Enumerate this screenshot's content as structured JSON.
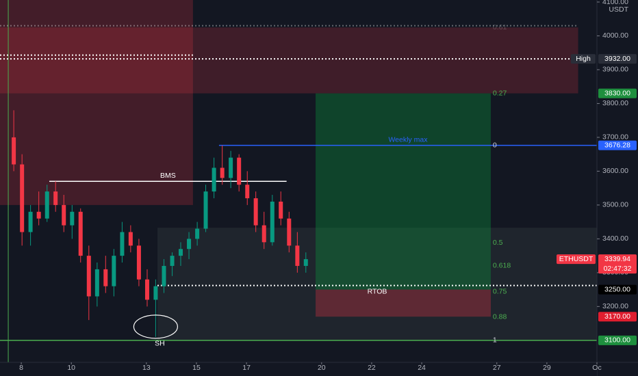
{
  "chart_data": {
    "type": "candlestick",
    "symbol": "ETHUSDT",
    "currency": "USDT",
    "up_color": "#089981",
    "down_color": "#f23645",
    "xlim": [
      7.15,
      31
    ],
    "ylim": [
      3035,
      4106
    ],
    "xticks": [
      8,
      10,
      13,
      15,
      17,
      20,
      22,
      24,
      27,
      29,
      {
        "value": 31,
        "label": "Oc"
      }
    ],
    "yticks": [
      {
        "value": 3200,
        "label": "3200.00"
      },
      {
        "value": 3300,
        "label": "3300.00"
      },
      {
        "value": 3400,
        "label": "3400.00"
      },
      {
        "value": 3500,
        "label": "3500.00"
      },
      {
        "value": 3600,
        "label": "3600.00"
      },
      {
        "value": 3700,
        "label": "3700.00"
      },
      {
        "value": 3800,
        "label": "3800.00"
      },
      {
        "value": 3900,
        "label": "3900.00"
      },
      {
        "value": 4000,
        "label": "4000.00"
      },
      {
        "value": 4100,
        "label": "4100.00"
      }
    ],
    "x": [
      7.7,
      8.03,
      8.37,
      8.7,
      9.03,
      9.37,
      9.7,
      10.03,
      10.37,
      10.7,
      11.03,
      11.37,
      11.7,
      12.03,
      12.37,
      12.7,
      13.03,
      13.37,
      13.7,
      14.03,
      14.37,
      14.7,
      15.03,
      15.37,
      15.7,
      16.03,
      16.37,
      16.7,
      17.03,
      17.37,
      17.7,
      18.03,
      18.37,
      18.7,
      19.03,
      19.37
    ],
    "open": [
      3700,
      3620,
      3420,
      3480,
      3460,
      3540,
      3500,
      3440,
      3480,
      3350,
      3230,
      3310,
      3260,
      3350,
      3420,
      3380,
      3280,
      3220,
      3260,
      3320,
      3350,
      3370,
      3400,
      3430,
      3540,
      3610,
      3580,
      3640,
      3560,
      3520,
      3440,
      3390,
      3510,
      3460,
      3380,
      3320
    ],
    "high": [
      3780,
      3650,
      3500,
      3540,
      3560,
      3570,
      3530,
      3500,
      3490,
      3380,
      3330,
      3350,
      3370,
      3450,
      3440,
      3400,
      3310,
      3280,
      3340,
      3360,
      3390,
      3420,
      3450,
      3560,
      3640,
      3676,
      3660,
      3650,
      3600,
      3540,
      3480,
      3530,
      3540,
      3480,
      3420,
      3360
    ],
    "low": [
      3600,
      3380,
      3380,
      3440,
      3450,
      3480,
      3420,
      3400,
      3330,
      3160,
      3200,
      3240,
      3230,
      3330,
      3360,
      3260,
      3200,
      3110,
      3240,
      3290,
      3320,
      3340,
      3380,
      3420,
      3520,
      3560,
      3550,
      3540,
      3500,
      3420,
      3370,
      3380,
      3440,
      3360,
      3300,
      3300
    ],
    "close": [
      3620,
      3420,
      3480,
      3460,
      3540,
      3500,
      3440,
      3480,
      3350,
      3230,
      3310,
      3260,
      3350,
      3420,
      3380,
      3280,
      3220,
      3260,
      3320,
      3350,
      3370,
      3400,
      3430,
      3540,
      3610,
      3580,
      3640,
      3560,
      3520,
      3440,
      3390,
      3510,
      3460,
      3380,
      3320,
      3339.94
    ],
    "zones": [
      {
        "from": 7.15,
        "to": 14.86,
        "top": 4106,
        "bottom": 3500,
        "color": "rgba(242,54,69,0.22)"
      },
      {
        "from": 7.15,
        "to": 30.25,
        "top": 4025,
        "bottom": 3830,
        "color": "rgba(242,54,69,0.2)"
      },
      {
        "from": 13.44,
        "to": 31,
        "top": 3433,
        "bottom": 3100,
        "color": "rgba(120,140,130,0.12)"
      },
      {
        "from": 19.76,
        "to": 26.76,
        "top": 3830,
        "bottom": 3250,
        "color": "rgba(8,153,60,0.35)"
      },
      {
        "from": 19.76,
        "to": 26.76,
        "top": 3250,
        "bottom": 3170,
        "color": "rgba(242,54,69,0.3)"
      }
    ],
    "hlines": [
      {
        "price": 4030,
        "from": 7.15,
        "to": 30.25,
        "color": "rgba(255,255,255,0.35)",
        "style": "dotted"
      },
      {
        "price": 3943,
        "from": 7.15,
        "to": 14.86,
        "color": "#ffffff",
        "style": "dotted"
      },
      {
        "price": 3932,
        "from": 7.15,
        "to": 30.25,
        "color": "#ffffff",
        "style": "dotted"
      },
      {
        "price": 3676.28,
        "from": 15.9,
        "to": 31,
        "color": "#2962ff",
        "style": "solid",
        "text": "Weekly max",
        "label_side": "above"
      },
      {
        "price": 3570,
        "from": 9.12,
        "to": 18.6,
        "color": "#ffffff",
        "style": "solid",
        "text": "BMS",
        "label_side": "above"
      },
      {
        "price": 3262,
        "from": 13.44,
        "to": 31,
        "color": "#ffffff",
        "style": "dotted",
        "text": "RTOB",
        "label_side": "below"
      },
      {
        "price": 3100,
        "from": 7.15,
        "to": 31,
        "color": "#4caf50",
        "style": "solid"
      }
    ],
    "vline": {
      "x": 7.48,
      "color": "#4caf50"
    },
    "fib": {
      "x": 26.84,
      "levels": [
        {
          "label": "0.61",
          "price": 4025
        },
        {
          "label": "0.27",
          "price": 3830
        },
        {
          "label": "0",
          "price": 3676.28
        },
        {
          "label": "0.5",
          "price": 3388
        },
        {
          "label": "0.618",
          "price": 3320
        },
        {
          "label": "0.75",
          "price": 3244
        },
        {
          "label": "0.88",
          "price": 3169
        },
        {
          "label": "1",
          "price": 3100
        }
      ]
    },
    "swing_low": {
      "text": "SH"
    },
    "price_labels": [
      {
        "name": "High",
        "value": 3932,
        "label": "3932.00",
        "color": "#2a2e39"
      },
      {
        "value": 3830,
        "label": "3830.00",
        "color": "#1e8f3e"
      },
      {
        "value": 3676.28,
        "label": "3676.28",
        "color": "#2962ff"
      },
      {
        "name": "ETHUSDT",
        "value": 3339.94,
        "label": "3339.94",
        "countdown": "02:47:32",
        "color": "#f23645"
      },
      {
        "value": 3250,
        "label": "3250.00",
        "color": "#000000"
      },
      {
        "value": 3170,
        "label": "3170.00",
        "color": "#e01e2f"
      },
      {
        "value": 3100,
        "label": "3100.00",
        "color": "#1e8f3e"
      }
    ]
  }
}
